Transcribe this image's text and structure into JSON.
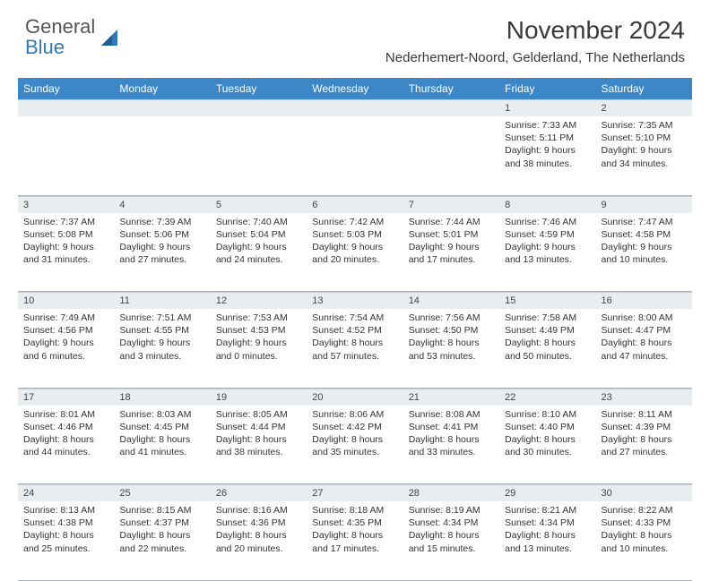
{
  "brand": {
    "general": "General",
    "blue": "Blue"
  },
  "title": "November 2024",
  "location": "Nederhemert-Noord, Gelderland, The Netherlands",
  "colors": {
    "header_bg": "#3b87c8",
    "header_fg": "#ffffff",
    "daynum_bg": "#e9edf0",
    "border": "#aab4bd",
    "brand_blue": "#2f79bf"
  },
  "weekdays": [
    "Sunday",
    "Monday",
    "Tuesday",
    "Wednesday",
    "Thursday",
    "Friday",
    "Saturday"
  ],
  "weeks": [
    [
      {
        "n": "",
        "sunrise": "",
        "sunset": "",
        "daylight": ""
      },
      {
        "n": "",
        "sunrise": "",
        "sunset": "",
        "daylight": ""
      },
      {
        "n": "",
        "sunrise": "",
        "sunset": "",
        "daylight": ""
      },
      {
        "n": "",
        "sunrise": "",
        "sunset": "",
        "daylight": ""
      },
      {
        "n": "",
        "sunrise": "",
        "sunset": "",
        "daylight": ""
      },
      {
        "n": "1",
        "sunrise": "Sunrise: 7:33 AM",
        "sunset": "Sunset: 5:11 PM",
        "daylight": "Daylight: 9 hours and 38 minutes."
      },
      {
        "n": "2",
        "sunrise": "Sunrise: 7:35 AM",
        "sunset": "Sunset: 5:10 PM",
        "daylight": "Daylight: 9 hours and 34 minutes."
      }
    ],
    [
      {
        "n": "3",
        "sunrise": "Sunrise: 7:37 AM",
        "sunset": "Sunset: 5:08 PM",
        "daylight": "Daylight: 9 hours and 31 minutes."
      },
      {
        "n": "4",
        "sunrise": "Sunrise: 7:39 AM",
        "sunset": "Sunset: 5:06 PM",
        "daylight": "Daylight: 9 hours and 27 minutes."
      },
      {
        "n": "5",
        "sunrise": "Sunrise: 7:40 AM",
        "sunset": "Sunset: 5:04 PM",
        "daylight": "Daylight: 9 hours and 24 minutes."
      },
      {
        "n": "6",
        "sunrise": "Sunrise: 7:42 AM",
        "sunset": "Sunset: 5:03 PM",
        "daylight": "Daylight: 9 hours and 20 minutes."
      },
      {
        "n": "7",
        "sunrise": "Sunrise: 7:44 AM",
        "sunset": "Sunset: 5:01 PM",
        "daylight": "Daylight: 9 hours and 17 minutes."
      },
      {
        "n": "8",
        "sunrise": "Sunrise: 7:46 AM",
        "sunset": "Sunset: 4:59 PM",
        "daylight": "Daylight: 9 hours and 13 minutes."
      },
      {
        "n": "9",
        "sunrise": "Sunrise: 7:47 AM",
        "sunset": "Sunset: 4:58 PM",
        "daylight": "Daylight: 9 hours and 10 minutes."
      }
    ],
    [
      {
        "n": "10",
        "sunrise": "Sunrise: 7:49 AM",
        "sunset": "Sunset: 4:56 PM",
        "daylight": "Daylight: 9 hours and 6 minutes."
      },
      {
        "n": "11",
        "sunrise": "Sunrise: 7:51 AM",
        "sunset": "Sunset: 4:55 PM",
        "daylight": "Daylight: 9 hours and 3 minutes."
      },
      {
        "n": "12",
        "sunrise": "Sunrise: 7:53 AM",
        "sunset": "Sunset: 4:53 PM",
        "daylight": "Daylight: 9 hours and 0 minutes."
      },
      {
        "n": "13",
        "sunrise": "Sunrise: 7:54 AM",
        "sunset": "Sunset: 4:52 PM",
        "daylight": "Daylight: 8 hours and 57 minutes."
      },
      {
        "n": "14",
        "sunrise": "Sunrise: 7:56 AM",
        "sunset": "Sunset: 4:50 PM",
        "daylight": "Daylight: 8 hours and 53 minutes."
      },
      {
        "n": "15",
        "sunrise": "Sunrise: 7:58 AM",
        "sunset": "Sunset: 4:49 PM",
        "daylight": "Daylight: 8 hours and 50 minutes."
      },
      {
        "n": "16",
        "sunrise": "Sunrise: 8:00 AM",
        "sunset": "Sunset: 4:47 PM",
        "daylight": "Daylight: 8 hours and 47 minutes."
      }
    ],
    [
      {
        "n": "17",
        "sunrise": "Sunrise: 8:01 AM",
        "sunset": "Sunset: 4:46 PM",
        "daylight": "Daylight: 8 hours and 44 minutes."
      },
      {
        "n": "18",
        "sunrise": "Sunrise: 8:03 AM",
        "sunset": "Sunset: 4:45 PM",
        "daylight": "Daylight: 8 hours and 41 minutes."
      },
      {
        "n": "19",
        "sunrise": "Sunrise: 8:05 AM",
        "sunset": "Sunset: 4:44 PM",
        "daylight": "Daylight: 8 hours and 38 minutes."
      },
      {
        "n": "20",
        "sunrise": "Sunrise: 8:06 AM",
        "sunset": "Sunset: 4:42 PM",
        "daylight": "Daylight: 8 hours and 35 minutes."
      },
      {
        "n": "21",
        "sunrise": "Sunrise: 8:08 AM",
        "sunset": "Sunset: 4:41 PM",
        "daylight": "Daylight: 8 hours and 33 minutes."
      },
      {
        "n": "22",
        "sunrise": "Sunrise: 8:10 AM",
        "sunset": "Sunset: 4:40 PM",
        "daylight": "Daylight: 8 hours and 30 minutes."
      },
      {
        "n": "23",
        "sunrise": "Sunrise: 8:11 AM",
        "sunset": "Sunset: 4:39 PM",
        "daylight": "Daylight: 8 hours and 27 minutes."
      }
    ],
    [
      {
        "n": "24",
        "sunrise": "Sunrise: 8:13 AM",
        "sunset": "Sunset: 4:38 PM",
        "daylight": "Daylight: 8 hours and 25 minutes."
      },
      {
        "n": "25",
        "sunrise": "Sunrise: 8:15 AM",
        "sunset": "Sunset: 4:37 PM",
        "daylight": "Daylight: 8 hours and 22 minutes."
      },
      {
        "n": "26",
        "sunrise": "Sunrise: 8:16 AM",
        "sunset": "Sunset: 4:36 PM",
        "daylight": "Daylight: 8 hours and 20 minutes."
      },
      {
        "n": "27",
        "sunrise": "Sunrise: 8:18 AM",
        "sunset": "Sunset: 4:35 PM",
        "daylight": "Daylight: 8 hours and 17 minutes."
      },
      {
        "n": "28",
        "sunrise": "Sunrise: 8:19 AM",
        "sunset": "Sunset: 4:34 PM",
        "daylight": "Daylight: 8 hours and 15 minutes."
      },
      {
        "n": "29",
        "sunrise": "Sunrise: 8:21 AM",
        "sunset": "Sunset: 4:34 PM",
        "daylight": "Daylight: 8 hours and 13 minutes."
      },
      {
        "n": "30",
        "sunrise": "Sunrise: 8:22 AM",
        "sunset": "Sunset: 4:33 PM",
        "daylight": "Daylight: 8 hours and 10 minutes."
      }
    ]
  ]
}
